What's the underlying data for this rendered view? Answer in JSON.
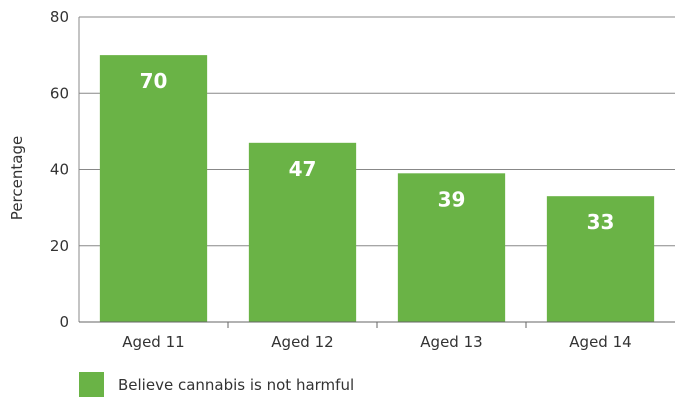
{
  "chart_data": {
    "type": "bar",
    "categories": [
      "Aged 11",
      "Aged 12",
      "Aged 13",
      "Aged 14"
    ],
    "series": [
      {
        "name": "Believe cannabis is not harmful",
        "values": [
          70,
          47,
          39,
          33
        ]
      }
    ],
    "ylabel": "Percentage",
    "ylim": [
      0,
      80
    ],
    "yticks": [
      0,
      20,
      40,
      60,
      80
    ],
    "grid": true,
    "legend": "bottom-left",
    "bar_color": "#6ab346",
    "data_label_color": "#ffffff"
  }
}
